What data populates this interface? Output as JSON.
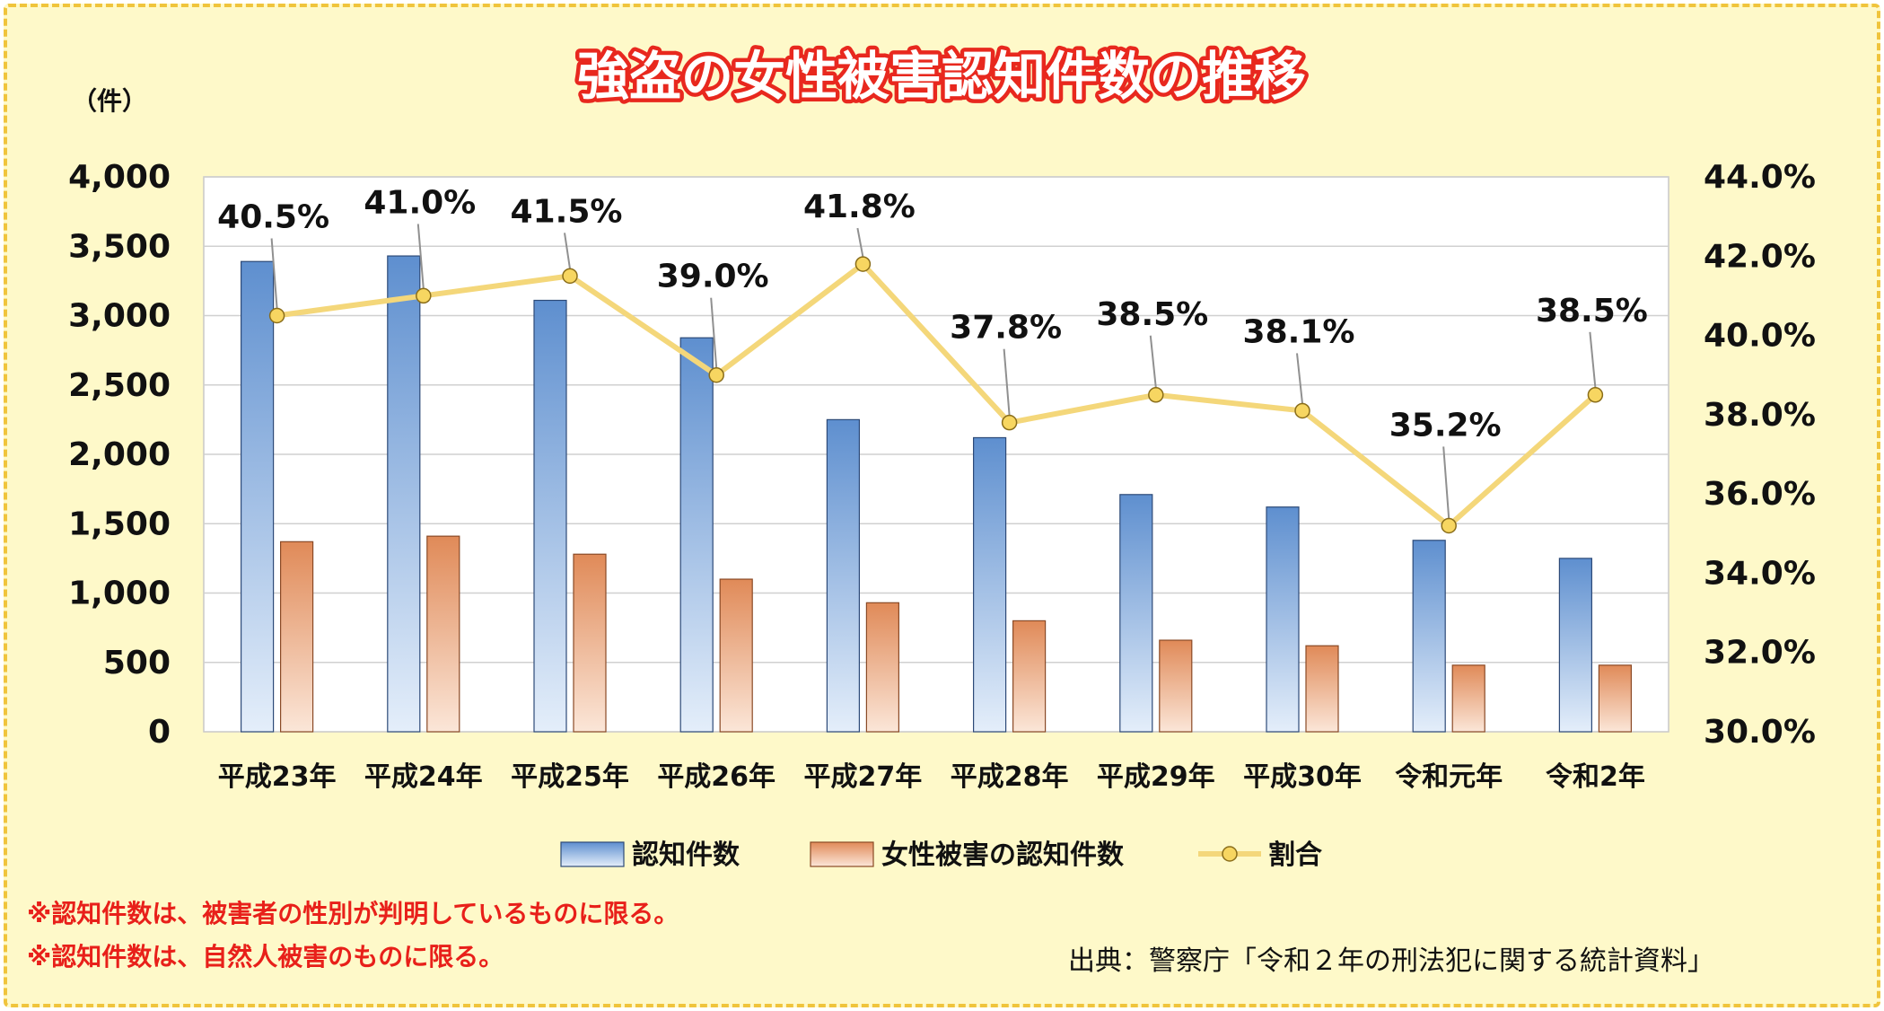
{
  "chart_data": {
    "type": "bar",
    "title": "強盗の女性被害認知件数の推移",
    "y_unit": "（件）",
    "categories": [
      "平成23年",
      "平成24年",
      "平成25年",
      "平成26年",
      "平成27年",
      "平成28年",
      "平成29年",
      "平成30年",
      "令和元年",
      "令和2年"
    ],
    "series": [
      {
        "name": "認知件数",
        "kind": "bar",
        "axis": "left",
        "values": [
          3390,
          3430,
          3110,
          2840,
          2250,
          2120,
          1710,
          1620,
          1380,
          1250
        ]
      },
      {
        "name": "女性被害の認知件数",
        "kind": "bar",
        "axis": "left",
        "values": [
          1370,
          1410,
          1280,
          1100,
          930,
          800,
          660,
          620,
          480,
          480
        ]
      },
      {
        "name": "割合",
        "kind": "line",
        "axis": "right",
        "values": [
          40.5,
          41.0,
          41.5,
          39.0,
          41.8,
          37.8,
          38.5,
          38.1,
          35.2,
          38.5
        ],
        "labels": [
          "40.5%",
          "41.0%",
          "41.5%",
          "39.0%",
          "41.8%",
          "37.8%",
          "38.5%",
          "38.1%",
          "35.2%",
          "38.5%"
        ]
      }
    ],
    "y_left": {
      "min": 0,
      "max": 4000,
      "step": 500,
      "tick_labels": [
        "0",
        "500",
        "1,000",
        "1,500",
        "2,000",
        "2,500",
        "3,000",
        "3,500",
        "4,000"
      ]
    },
    "y_right": {
      "min": 30,
      "max": 44,
      "step": 2,
      "tick_labels": [
        "30.0%",
        "32.0%",
        "34.0%",
        "36.0%",
        "38.0%",
        "40.0%",
        "42.0%",
        "44.0%"
      ]
    },
    "grid": true,
    "legend_position": "bottom"
  },
  "notes": [
    "※認知件数は、被害者の性別が判明しているものに限る。",
    "※認知件数は、自然人被害のものに限る。"
  ],
  "source": "出典：警察庁「令和２年の刑法犯に関する統計資料」",
  "colors": {
    "frame_bg": "#fef9c9",
    "frame_border": "#f0c43c",
    "bar1_top": "#5e8fcf",
    "bar1_bottom": "#e4eefa",
    "bar1_stroke": "#2d4a78",
    "bar2_top": "#e08a58",
    "bar2_bottom": "#fbe6d8",
    "bar2_stroke": "#8a4a26",
    "line": "#f4d77a",
    "marker_fill": "#f7d661",
    "marker_stroke": "#8a6d1a",
    "title_stroke": "#e8281e",
    "note": "#e8201a"
  }
}
